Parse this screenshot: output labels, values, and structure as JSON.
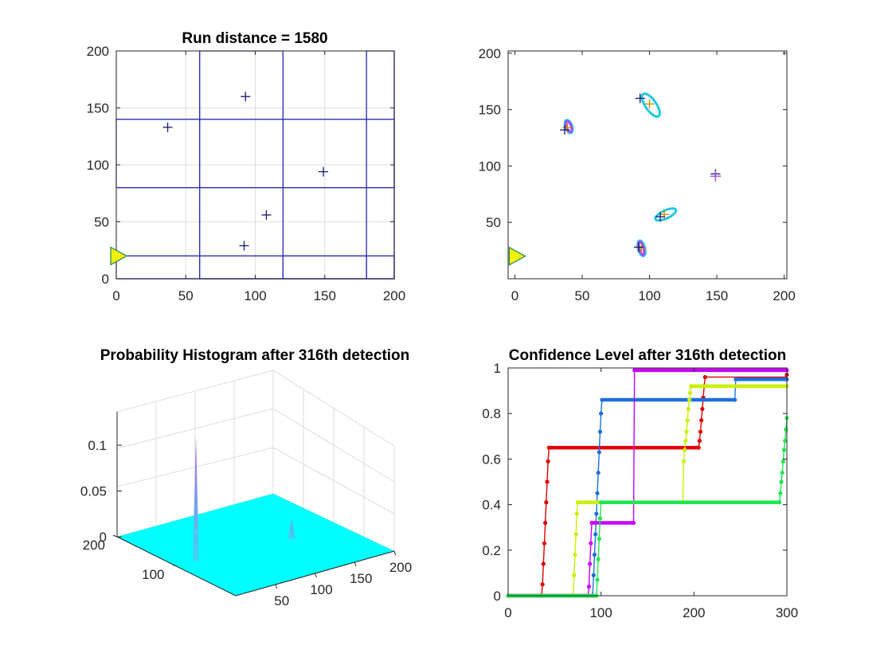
{
  "colors": {
    "axis": "#262626",
    "grid": "#dfdfdf",
    "search_lines": "#2a2ab8",
    "target_marker": "#1a1a6e",
    "vehicle_fill": "#f2f20d",
    "vehicle_stroke": "#2e8b57",
    "surface": "#00ffff"
  },
  "icons": {
    "vehicle": "yellow-triangle-vehicle-icon"
  },
  "chart_data": [
    {
      "type": "scatter",
      "title": "Run distance = 1580",
      "xlim": [
        0,
        200
      ],
      "ylim": [
        0,
        200
      ],
      "xticks": [
        0,
        50,
        100,
        150,
        200
      ],
      "yticks": [
        0,
        50,
        100,
        150,
        200
      ],
      "grid": true,
      "targets": [
        {
          "x": 37,
          "y": 133
        },
        {
          "x": 93,
          "y": 160
        },
        {
          "x": 149,
          "y": 94
        },
        {
          "x": 108,
          "y": 56
        },
        {
          "x": 92,
          "y": 29
        }
      ],
      "vehicle": {
        "x": 0,
        "y": 20
      },
      "search_rectangles": [
        {
          "x0": 60,
          "y0": 0,
          "x1": 120,
          "y1": 200
        },
        {
          "x0": 180,
          "y0": 0,
          "x1": 200,
          "y1": 200
        },
        {
          "x0": 0,
          "y0": 80,
          "x1": 200,
          "y1": 140
        },
        {
          "x0": 0,
          "y0": 0,
          "x1": 200,
          "y1": 20
        },
        {
          "x0": 120,
          "y0": 0,
          "x1": 180,
          "y1": 20
        }
      ],
      "search_lines_h": [
        0,
        20,
        80,
        140
      ],
      "search_lines_v": [
        60,
        120,
        180,
        200
      ]
    },
    {
      "type": "scatter",
      "title": "",
      "xlim": [
        -5,
        202
      ],
      "ylim": [
        0,
        202
      ],
      "xticks": [
        0,
        50,
        100,
        150,
        200
      ],
      "yticks": [
        50,
        100,
        150,
        200
      ],
      "grid": false,
      "true_targets": [
        {
          "x": 37,
          "y": 132
        },
        {
          "x": 93,
          "y": 160
        },
        {
          "x": 149,
          "y": 93
        },
        {
          "x": 108,
          "y": 55
        },
        {
          "x": 92,
          "y": 28
        }
      ],
      "estimates": [
        {
          "x": 39,
          "y": 134
        },
        {
          "x": 100,
          "y": 155
        },
        {
          "x": 149,
          "y": 91
        },
        {
          "x": 111,
          "y": 57
        },
        {
          "x": 94,
          "y": 27
        }
      ],
      "confidence_ellipses": [
        {
          "cx": 40,
          "cy": 135,
          "rx": 2.5,
          "ry": 6,
          "rot": -20,
          "color": "#1ec8e6"
        },
        {
          "cx": 40,
          "cy": 135,
          "rx": 1.8,
          "ry": 5,
          "rot": -20,
          "color": "#a64dff"
        },
        {
          "cx": 101,
          "cy": 154,
          "rx": 4,
          "ry": 12,
          "rot": -35,
          "color": "#1ec8e6"
        },
        {
          "cx": 112,
          "cy": 57,
          "rx": 3,
          "ry": 10,
          "rot": 65,
          "color": "#1ec8e6"
        },
        {
          "cx": 94,
          "cy": 27,
          "rx": 2.5,
          "ry": 7,
          "rot": -15,
          "color": "#1ec8e6"
        },
        {
          "cx": 94,
          "cy": 27,
          "rx": 1.6,
          "ry": 6,
          "rot": -15,
          "color": "#a64dff"
        }
      ],
      "vehicle": {
        "x": 0,
        "y": 20
      }
    },
    {
      "type": "surface",
      "title": "Probability Histogram after 316th detection",
      "zticks": [
        0,
        0.05,
        0.1
      ],
      "yticks": [
        200,
        100
      ],
      "xticks": [
        50,
        100,
        150,
        200
      ],
      "peaks": [
        {
          "x": 100,
          "y": 175,
          "z": 0.13
        },
        {
          "x": 110,
          "y": 60,
          "z": 0.02
        },
        {
          "x": 40,
          "y": 130,
          "z": 0.008
        }
      ]
    },
    {
      "type": "line",
      "title": "Confidence Level after 316th detection",
      "xlim": [
        0,
        300
      ],
      "ylim": [
        0,
        1
      ],
      "xticks": [
        0,
        100,
        200,
        300
      ],
      "yticks": [
        0,
        0.2,
        0.4,
        0.6,
        0.8,
        1
      ],
      "series": [
        {
          "color": "#e00000",
          "points": [
            [
              0,
              0
            ],
            [
              36,
              0
            ],
            [
              37,
              0.05
            ],
            [
              38,
              0.14
            ],
            [
              39,
              0.23
            ],
            [
              40,
              0.32
            ],
            [
              41,
              0.41
            ],
            [
              42,
              0.5
            ],
            [
              43,
              0.59
            ],
            [
              44,
              0.65
            ],
            [
              205,
              0.65
            ],
            [
              206,
              0.68
            ],
            [
              207,
              0.72
            ],
            [
              208,
              0.77
            ],
            [
              209,
              0.82
            ],
            [
              210,
              0.87
            ],
            [
              211,
              0.92
            ],
            [
              212,
              0.96
            ],
            [
              300,
              0.97
            ]
          ]
        },
        {
          "color": "#1e6fe0",
          "points": [
            [
              0,
              0
            ],
            [
              91,
              0
            ],
            [
              92,
              0.09
            ],
            [
              93,
              0.18
            ],
            [
              94,
              0.27
            ],
            [
              95,
              0.36
            ],
            [
              96,
              0.45
            ],
            [
              97,
              0.54
            ],
            [
              98,
              0.63
            ],
            [
              99,
              0.72
            ],
            [
              100,
              0.8
            ],
            [
              101,
              0.86
            ],
            [
              244,
              0.86
            ],
            [
              245,
              0.95
            ],
            [
              300,
              0.95
            ]
          ]
        },
        {
          "color": "#c8f000",
          "points": [
            [
              0,
              0
            ],
            [
              70,
              0
            ],
            [
              71,
              0.09
            ],
            [
              72,
              0.18
            ],
            [
              73,
              0.27
            ],
            [
              74,
              0.36
            ],
            [
              75,
              0.41
            ],
            [
              188,
              0.41
            ],
            [
              189,
              0.59
            ],
            [
              190,
              0.64
            ],
            [
              191,
              0.68
            ],
            [
              192,
              0.72
            ],
            [
              193,
              0.77
            ],
            [
              194,
              0.82
            ],
            [
              195,
              0.86
            ],
            [
              196,
              0.89
            ],
            [
              197,
              0.92
            ],
            [
              300,
              0.92
            ]
          ]
        },
        {
          "color": "#c800ff",
          "points": [
            [
              0,
              0
            ],
            [
              86,
              0
            ],
            [
              87,
              0.04
            ],
            [
              88,
              0.14
            ],
            [
              89,
              0.23
            ],
            [
              90,
              0.32
            ],
            [
              135,
              0.32
            ],
            [
              136,
              0.99
            ],
            [
              300,
              0.99
            ]
          ]
        },
        {
          "color": "#1ee650",
          "points": [
            [
              0,
              0
            ],
            [
              95,
              0
            ],
            [
              96,
              0.07
            ],
            [
              97,
              0.16
            ],
            [
              98,
              0.25
            ],
            [
              99,
              0.34
            ],
            [
              100,
              0.41
            ],
            [
              292,
              0.41
            ],
            [
              293,
              0.45
            ],
            [
              294,
              0.5
            ],
            [
              295,
              0.54
            ],
            [
              296,
              0.59
            ],
            [
              297,
              0.64
            ],
            [
              298,
              0.68
            ],
            [
              299,
              0.73
            ],
            [
              300,
              0.78
            ]
          ]
        }
      ]
    }
  ]
}
